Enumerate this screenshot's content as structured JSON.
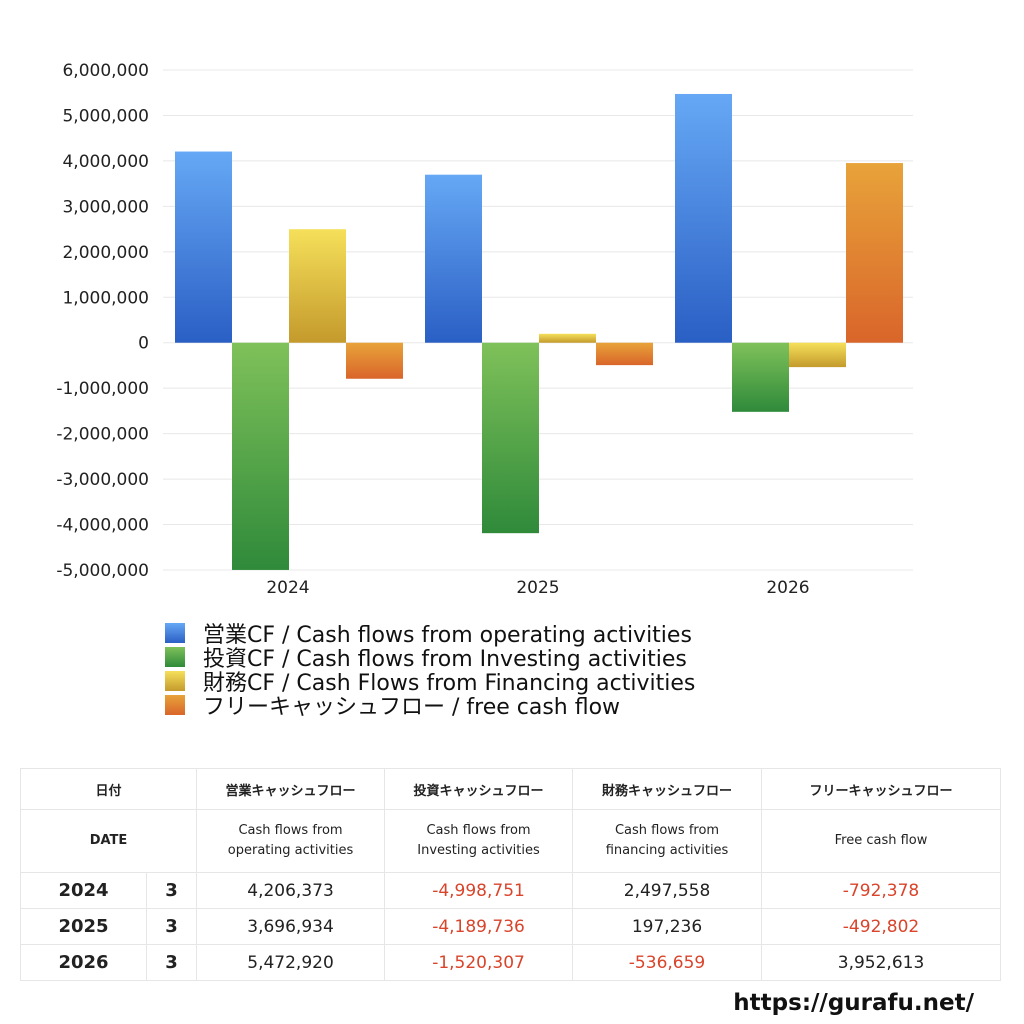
{
  "chart_data": {
    "type": "bar",
    "categories": [
      "2024",
      "2025",
      "2026"
    ],
    "series": [
      {
        "name": "営業CF / Cash flows from operating activities",
        "values": [
          4206373,
          3696934,
          5472920
        ],
        "color_top": "#66a8f5",
        "color_bottom": "#2a5fc4"
      },
      {
        "name": "投資CF / Cash flows from Investing activities",
        "values": [
          -4998751,
          -4189736,
          -1520307
        ],
        "color_top": "#7fc15a",
        "color_bottom": "#2f8a3a"
      },
      {
        "name": "財務CF / Cash Flows from Financing activities",
        "values": [
          2497558,
          197236,
          -536659
        ],
        "color_top": "#f5e05a",
        "color_bottom": "#c49a2c"
      },
      {
        "name": "フリーキャッシュフロー / free cash flow",
        "values": [
          -792378,
          -492802,
          3952613
        ],
        "color_top": "#e8a33a",
        "color_bottom": "#d9652a"
      }
    ],
    "ylim": [
      -5000000,
      6000000
    ],
    "yticks": [
      "6,000,000",
      "5,000,000",
      "4,000,000",
      "3,000,000",
      "2,000,000",
      "1,000,000",
      "0",
      "-1,000,000",
      "-2,000,000",
      "-3,000,000",
      "-4,000,000",
      "-5,000,000"
    ],
    "ytick_values": [
      6000000,
      5000000,
      4000000,
      3000000,
      2000000,
      1000000,
      0,
      -1000000,
      -2000000,
      -3000000,
      -4000000,
      -5000000
    ],
    "grid": true,
    "legend_position": "bottom"
  },
  "table": {
    "header_ja": {
      "date": "日付",
      "op": "営業キャッシュフロー",
      "inv": "投資キャッシュフロー",
      "fin": "財務キャッシュフロー",
      "free": "フリーキャッシュフロー"
    },
    "header_en": {
      "date": "DATE",
      "op_1": "Cash flows from",
      "op_2": "operating activities",
      "inv_1": "Cash flows from",
      "inv_2": "Investing activities",
      "fin_1": "Cash flows from",
      "fin_2": "financing activities",
      "free": "Free cash flow"
    },
    "rows": [
      {
        "year": "2024",
        "month": "3",
        "op": "4,206,373",
        "inv": "-4,998,751",
        "fin": "2,497,558",
        "free": "-792,378"
      },
      {
        "year": "2025",
        "month": "3",
        "op": "3,696,934",
        "inv": "-4,189,736",
        "fin": "197,236",
        "free": "-492,802"
      },
      {
        "year": "2026",
        "month": "3",
        "op": "5,472,920",
        "inv": "-1,520,307",
        "fin": "-536,659",
        "free": "3,952,613"
      }
    ]
  },
  "footer": {
    "site": "https://gurafu.net/"
  }
}
